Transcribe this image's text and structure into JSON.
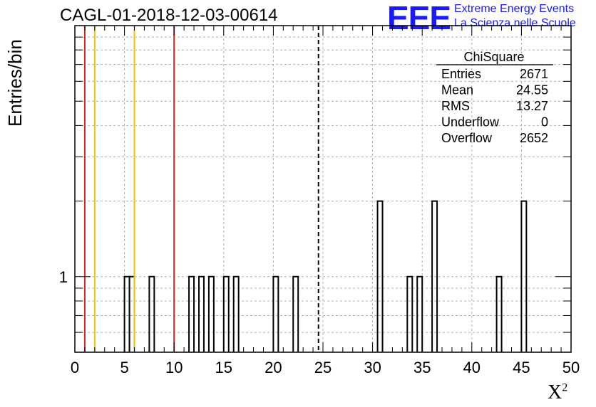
{
  "title": "CAGL-01-2018-12-03-00614",
  "logo": {
    "mark": "EEE",
    "line1": "Extreme Energy Events",
    "line2": "La Scienza nelle Scuole"
  },
  "chart_data": {
    "type": "bar",
    "title": "CAGL-01-2018-12-03-00614",
    "xlabel": "X",
    "xlabel_superscript": "2",
    "ylabel": "Entries/bin",
    "xlim": [
      0,
      50
    ],
    "y_scale": "log",
    "ylim": [
      0.5,
      10
    ],
    "x_ticks": [
      "0",
      "5",
      "10",
      "15",
      "20",
      "25",
      "30",
      "35",
      "40",
      "45",
      "50"
    ],
    "y_tick_labels": [
      {
        "value": 1,
        "label": "1"
      }
    ],
    "grid": true,
    "bin_width": 0.5,
    "bars": [
      {
        "x": 5.0,
        "value": 1
      },
      {
        "x": 5.5,
        "value": 1
      },
      {
        "x": 7.5,
        "value": 1
      },
      {
        "x": 11.5,
        "value": 1
      },
      {
        "x": 12.5,
        "value": 1
      },
      {
        "x": 13.5,
        "value": 1
      },
      {
        "x": 15.0,
        "value": 1
      },
      {
        "x": 16.0,
        "value": 1
      },
      {
        "x": 20.0,
        "value": 1
      },
      {
        "x": 22.0,
        "value": 1
      },
      {
        "x": 30.5,
        "value": 2
      },
      {
        "x": 33.5,
        "value": 1
      },
      {
        "x": 34.5,
        "value": 1
      },
      {
        "x": 36.0,
        "value": 2
      },
      {
        "x": 42.5,
        "value": 1
      },
      {
        "x": 45.0,
        "value": 2
      }
    ],
    "vertical_lines": [
      {
        "x": 1,
        "color": "#dd2222",
        "style": "solid"
      },
      {
        "x": 2,
        "color": "#f2c200",
        "style": "solid"
      },
      {
        "x": 6,
        "color": "#f2c200",
        "style": "solid"
      },
      {
        "x": 10,
        "color": "#dd2222",
        "style": "solid"
      },
      {
        "x": 24.55,
        "color": "#000000",
        "style": "dashed"
      }
    ],
    "stats": {
      "name": "ChiSquare",
      "rows": [
        {
          "label": "Entries",
          "value": "2671"
        },
        {
          "label": "Mean",
          "value": "24.55"
        },
        {
          "label": "RMS",
          "value": "13.27"
        },
        {
          "label": "Underflow",
          "value": "0"
        },
        {
          "label": "Overflow",
          "value": "2652"
        }
      ]
    }
  }
}
